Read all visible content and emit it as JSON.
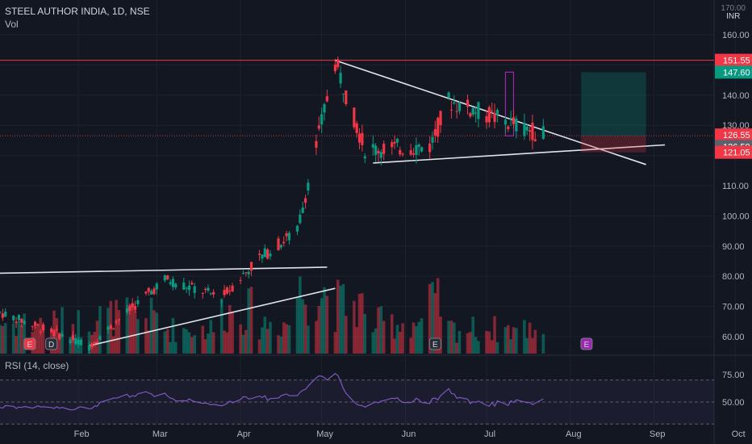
{
  "header": {
    "title": "STEEL AUTHOR INDIA, 1D, NSE",
    "vol_label": "Vol",
    "currency": "INR",
    "top_tick": "170.00"
  },
  "rsi": {
    "label": "RSI (14, close)",
    "ticks": [
      "75.00",
      "50.00"
    ]
  },
  "price_axis": {
    "ticks": [
      "160.00",
      "150.00",
      "140.00",
      "130.00",
      "120.00",
      "110.00",
      "100.00",
      "90.00",
      "80.00",
      "70.00",
      "60.00"
    ]
  },
  "time_axis": {
    "labels": [
      "Feb",
      "Mar",
      "Apr",
      "May",
      "Jun",
      "Jul",
      "Aug",
      "Sep",
      "Oct"
    ]
  },
  "price_tags": [
    {
      "value": "151.55",
      "color": "#f23645"
    },
    {
      "value": "147.60",
      "color": "#089981"
    },
    {
      "value": "126.55",
      "color": "#f23645"
    },
    {
      "value": "126.50",
      "color": "#5d606b"
    },
    {
      "value": "121.05",
      "color": "#f23645"
    }
  ],
  "event_markers": [
    "E",
    "D",
    "E",
    "E"
  ],
  "colors": {
    "up": "#089981",
    "down": "#f23645",
    "background": "#131722",
    "rsi_line": "#7e57c2",
    "resistance": "#f23645"
  },
  "chart_data": {
    "type": "candlestick",
    "symbol": "STEEL AUTHOR INDIA",
    "interval": "1D",
    "exchange": "NSE",
    "y_unit": "INR",
    "ylim": [
      55,
      170
    ],
    "resistance_level": 151.55,
    "last_price": 126.55,
    "position_tool": {
      "entry": 126.5,
      "target": 147.6,
      "stop": 121.05
    },
    "trendlines": [
      {
        "from": [
          "2024-01-03",
          81
        ],
        "to": [
          "2024-05-03",
          83
        ]
      },
      {
        "from": [
          "2024-02-05",
          57
        ],
        "to": [
          "2024-05-06",
          76
        ]
      },
      {
        "from": [
          "2024-05-06",
          151.5
        ],
        "to": [
          "2024-08-29",
          117
        ]
      },
      {
        "from": [
          "2024-05-20",
          117.5
        ],
        "to": [
          "2024-09-05",
          123.5
        ]
      }
    ],
    "segments": [
      {
        "start": "2024-01-03",
        "end": "2024-02-05",
        "from": 68,
        "to": 57,
        "vol": 0.5
      },
      {
        "start": "2024-02-05",
        "end": "2024-03-04",
        "from": 57,
        "to": 79,
        "vol": 0.6
      },
      {
        "start": "2024-03-04",
        "end": "2024-03-25",
        "from": 79,
        "to": 73,
        "vol": 0.4
      },
      {
        "start": "2024-03-25",
        "end": "2024-04-08",
        "from": 73,
        "to": 86,
        "vol": 0.7
      },
      {
        "start": "2024-04-08",
        "end": "2024-04-22",
        "from": 86,
        "to": 95,
        "vol": 0.5
      },
      {
        "start": "2024-04-22",
        "end": "2024-05-06",
        "from": 95,
        "to": 151,
        "vol": 1.0
      },
      {
        "start": "2024-05-06",
        "end": "2024-05-17",
        "from": 151,
        "to": 122,
        "vol": 0.8
      },
      {
        "start": "2024-05-17",
        "end": "2024-06-10",
        "from": 122,
        "to": 123,
        "vol": 0.5
      },
      {
        "start": "2024-06-10",
        "end": "2024-06-17",
        "from": 123,
        "to": 138,
        "vol": 0.8
      },
      {
        "start": "2024-06-17",
        "end": "2024-07-23",
        "from": 138,
        "to": 126.5,
        "vol": 0.4
      }
    ]
  }
}
